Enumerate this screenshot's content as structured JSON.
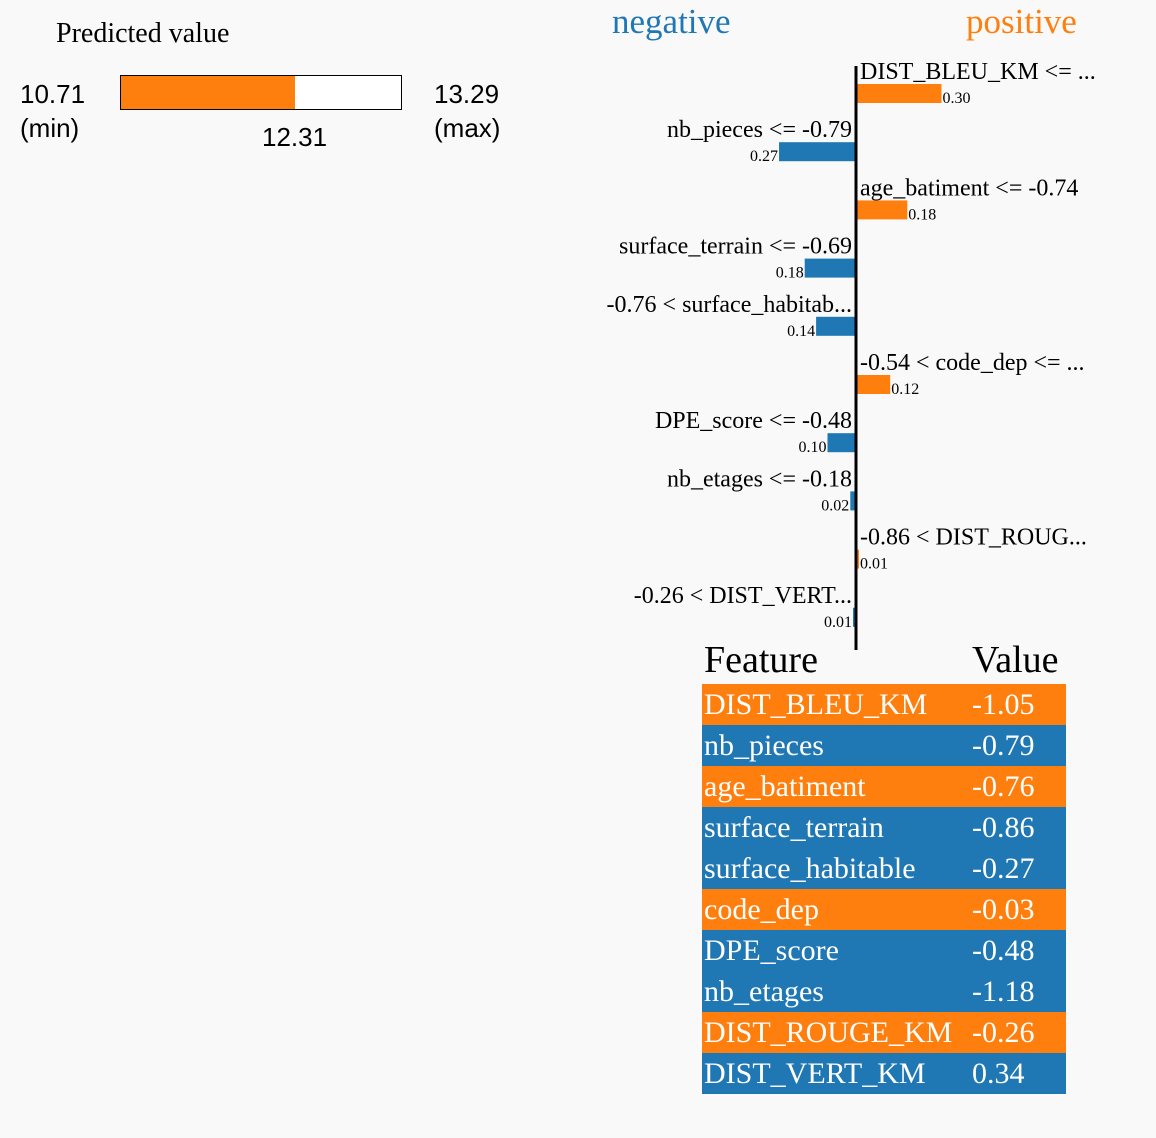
{
  "predicted": {
    "title": "Predicted value",
    "min": "10.71",
    "min_label": "(min)",
    "max": "13.29",
    "max_label": "(max)",
    "value": "12.31",
    "min_num": 10.71,
    "max_num": 13.29,
    "value_num": 12.31
  },
  "colors": {
    "positive": "#ff7f0e",
    "negative": "#1f77b4"
  },
  "headers": {
    "negative": "negative",
    "positive": "positive"
  },
  "chart_data": {
    "type": "bar",
    "orientation": "horizontal",
    "categories": [
      "DIST_BLEU_KM <= ...",
      "nb_pieces <= -0.79",
      "age_batiment <= -0.74",
      "surface_terrain <= -0.69",
      "-0.76 < surface_habitab...",
      "-0.54 < code_dep <= ...",
      "DPE_score <= -0.48",
      "nb_etages <= -0.18",
      "-0.86 < DIST_ROUG...",
      "-0.26 < DIST_VERT..."
    ],
    "values": [
      0.3,
      -0.27,
      0.18,
      -0.18,
      -0.14,
      0.12,
      -0.1,
      -0.02,
      0.01,
      -0.01
    ],
    "value_labels": [
      "0.30",
      "0.27",
      "0.18",
      "0.18",
      "0.14",
      "0.12",
      "0.10",
      "0.02",
      "0.01",
      "0.01"
    ]
  },
  "table": {
    "header": {
      "feature": "Feature",
      "value": "Value"
    },
    "rows": [
      {
        "feature": "DIST_BLEU_KM",
        "value": "-1.05",
        "sign": "positive"
      },
      {
        "feature": "nb_pieces",
        "value": "-0.79",
        "sign": "negative"
      },
      {
        "feature": "age_batiment",
        "value": "-0.76",
        "sign": "positive"
      },
      {
        "feature": "surface_terrain",
        "value": "-0.86",
        "sign": "negative"
      },
      {
        "feature": "surface_habitable",
        "value": "-0.27",
        "sign": "negative"
      },
      {
        "feature": "code_dep",
        "value": "-0.03",
        "sign": "positive"
      },
      {
        "feature": "DPE_score",
        "value": "-0.48",
        "sign": "negative"
      },
      {
        "feature": "nb_etages",
        "value": "-1.18",
        "sign": "negative"
      },
      {
        "feature": "DIST_ROUGE_KM",
        "value": "-0.26",
        "sign": "positive"
      },
      {
        "feature": "DIST_VERT_KM",
        "value": "0.34",
        "sign": "negative"
      }
    ]
  }
}
